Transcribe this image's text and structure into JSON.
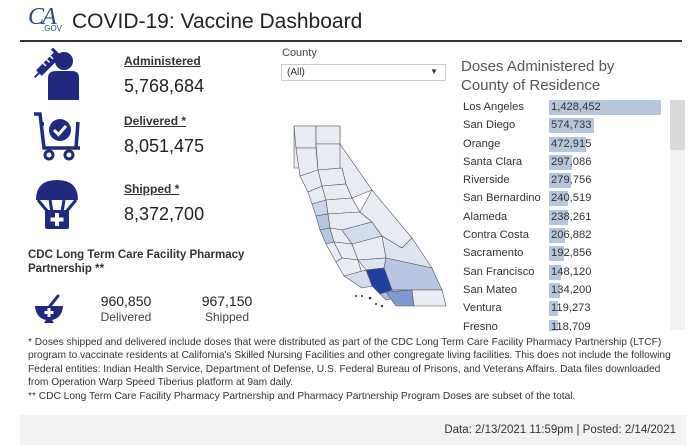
{
  "header": {
    "logo_ca": "CA",
    "logo_gov": ".GOV",
    "title": "COVID-19: Vaccine Dashboard"
  },
  "kpis": [
    {
      "label": "Administered",
      "value": "5,768,684",
      "icon": "vaccine-person-icon"
    },
    {
      "label": "Delivered *",
      "value": "8,051,475",
      "icon": "cart-check-icon"
    },
    {
      "label": "Shipped *",
      "value": "8,372,700",
      "icon": "parachute-medical-icon"
    }
  ],
  "ltc": {
    "title": "CDC Long Term Care Facility Pharmacy Partnership **",
    "icon": "mortar-pestle-icon",
    "delivered_value": "960,850",
    "delivered_label": "Delivered",
    "shipped_value": "967,150",
    "shipped_label": "Shipped"
  },
  "filter": {
    "label": "County",
    "selected": "(All)",
    "arrow": "▼"
  },
  "table": {
    "title_line1": "Doses Administered by",
    "title_line2": "County of Residence",
    "bar_color": "#b6c7dd",
    "rows": [
      {
        "county": "Los Angeles",
        "doses": "1,428,452",
        "n": 1428452
      },
      {
        "county": "San Diego",
        "doses": "574,733",
        "n": 574733
      },
      {
        "county": "Orange",
        "doses": "472,915",
        "n": 472915
      },
      {
        "county": "Santa Clara",
        "doses": "297,086",
        "n": 297086
      },
      {
        "county": "Riverside",
        "doses": "279,756",
        "n": 279756
      },
      {
        "county": "San Bernardino",
        "doses": "240,519",
        "n": 240519
      },
      {
        "county": "Alameda",
        "doses": "238,261",
        "n": 238261
      },
      {
        "county": "Contra Costa",
        "doses": "206,882",
        "n": 206882
      },
      {
        "county": "Sacramento",
        "doses": "192,856",
        "n": 192856
      },
      {
        "county": "San Francisco",
        "doses": "148,120",
        "n": 148120
      },
      {
        "county": "San Mateo",
        "doses": "134,200",
        "n": 134200
      },
      {
        "county": "Ventura",
        "doses": "119,273",
        "n": 119273
      },
      {
        "county": "Fresno",
        "doses": "118,709",
        "n": 118709
      }
    ]
  },
  "notes": {
    "line1": "* Doses shipped and delivered include doses that were distributed as part of the CDC Long Term Care Facility Pharmacy Partnership (LTCF) program to vaccinate residents at California's Skilled Nursing Facilities and other congregate living facilities. This does not include the following Federal entities: Indian Health Service, Department of Defense, U.S. Federal Bureau of Prisons, and Veterans Affairs. Data files downloaded from Operation Warp Speed Tiberius platform at 9am daily.",
    "line2": "** CDC Long Term Care Facility Pharmacy Partnership and Pharmacy Partnership Program Doses are subset of the total."
  },
  "footer": {
    "text": "Data: 2/13/2021 11:59pm | Posted: 2/14/2021"
  },
  "colors": {
    "icon_navy": "#1f2a80",
    "map_dark": "#1d3f9e",
    "map_mid": "#7d9bd0",
    "map_light": "#b7c7e3",
    "map_base": "#e9ecf2"
  }
}
